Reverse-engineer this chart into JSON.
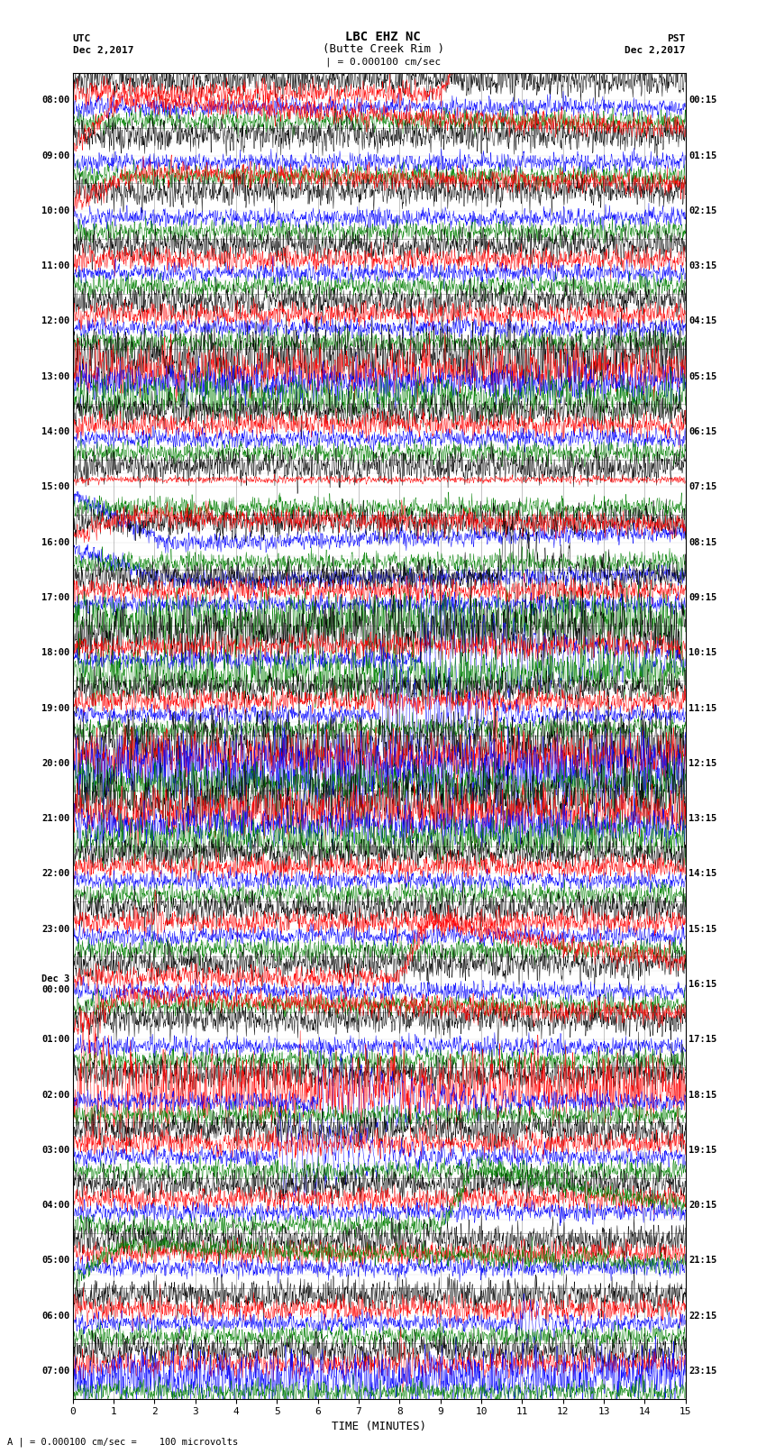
{
  "title_line1": "LBC EHZ NC",
  "title_line2": "(Butte Creek Rim )",
  "scale_label": "| = 0.000100 cm/sec",
  "xlabel": "TIME (MINUTES)",
  "bottom_note": "A | = 0.000100 cm/sec =    100 microvolts",
  "left_times": [
    "08:00",
    "09:00",
    "10:00",
    "11:00",
    "12:00",
    "13:00",
    "14:00",
    "15:00",
    "16:00",
    "17:00",
    "18:00",
    "19:00",
    "20:00",
    "21:00",
    "22:00",
    "23:00",
    "Dec 3\n00:00",
    "01:00",
    "02:00",
    "03:00",
    "04:00",
    "05:00",
    "06:00",
    "07:00"
  ],
  "right_times": [
    "00:15",
    "01:15",
    "02:15",
    "03:15",
    "04:15",
    "05:15",
    "06:15",
    "07:15",
    "08:15",
    "09:15",
    "10:15",
    "11:15",
    "12:15",
    "13:15",
    "14:15",
    "15:15",
    "16:15",
    "17:15",
    "18:15",
    "19:15",
    "20:15",
    "21:15",
    "22:15",
    "23:15"
  ],
  "colors": [
    "black",
    "red",
    "blue",
    "green"
  ],
  "n_hours": 24,
  "x_min": 0,
  "x_max": 15,
  "bg_color": "white",
  "grid_color": "#888888",
  "figsize": [
    8.5,
    16.13
  ],
  "dpi": 100,
  "n_pts": 2000
}
